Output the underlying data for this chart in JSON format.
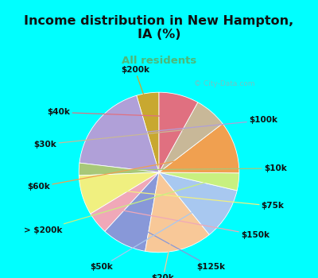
{
  "title": "Income distribution in New Hampton,\nIA (%)",
  "subtitle": "All residents",
  "title_color": "#111111",
  "subtitle_color": "#4db87a",
  "background_color": "#00ffff",
  "chart_bg_color": "#e0f0e8",
  "watermark": "© City-Data.com",
  "labels": [
    "$200k",
    "$100k",
    "$10k",
    "$75k",
    "$150k",
    "$125k",
    "$20k",
    "$50k",
    "> $200k",
    "$60k",
    "$30k",
    "$40k"
  ],
  "values": [
    4.5,
    18.5,
    2.5,
    8.0,
    4.5,
    9.0,
    13.5,
    10.5,
    3.5,
    10.5,
    6.5,
    8.0
  ],
  "colors": [
    "#c8a830",
    "#b0a0d8",
    "#a8c878",
    "#f0f080",
    "#f0a8b8",
    "#8898d8",
    "#f8c898",
    "#a8c8f0",
    "#c8f080",
    "#f0a050",
    "#c8b898",
    "#e07080"
  ],
  "startangle": 90,
  "title_fontsize": 11.5,
  "subtitle_fontsize": 9.5,
  "label_fontsize": 7.5
}
